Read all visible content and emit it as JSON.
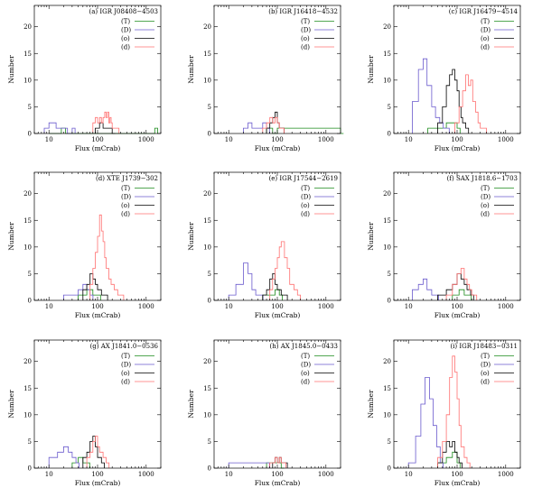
{
  "colors": {
    "T": "#1a8a1a",
    "D": "#6a5acd",
    "o": "#000000",
    "d": "#ff7070"
  },
  "chart_data": {
    "type": "histogram",
    "xscale": "log",
    "xlabel": "Flux (mCrab)",
    "ylabel": "Number",
    "x_ticks": [
      "10",
      "100",
      "1000"
    ],
    "y_ticks": [
      "0",
      "5",
      "10",
      "15",
      "20"
    ],
    "ylim": [
      0,
      24
    ],
    "legend": [
      "(T)",
      "(D)",
      "(o)",
      "(d)"
    ],
    "panels": [
      {
        "title": "(a) IGR J08408−4503",
        "xlim": [
          5,
          2000
        ],
        "series": [
          {
            "key": "T",
            "x": [
              10,
              14,
              18,
              22,
              1500
            ],
            "y": [
              0,
              0,
              1,
              0,
              1
            ]
          },
          {
            "key": "D",
            "x": [
              8,
              10,
              14,
              18,
              24,
              30
            ],
            "y": [
              1,
              2,
              1,
              1,
              0,
              1
            ]
          },
          {
            "key": "o",
            "x": [
              90,
              110,
              130,
              160,
              200
            ],
            "y": [
              1,
              2,
              1,
              1,
              0
            ]
          },
          {
            "key": "d",
            "x": [
              80,
              90,
              100,
              110,
              120,
              130,
              140,
              150,
              160,
              170,
              180,
              190,
              200,
              220,
              240
            ],
            "y": [
              2,
              3,
              2,
              3,
              2,
              3,
              4,
              3,
              4,
              2,
              3,
              2,
              1,
              1,
              1
            ]
          }
        ]
      },
      {
        "title": "(b) IGR J16418−4532",
        "xlim": [
          5,
          2000
        ],
        "series": [
          {
            "key": "T",
            "x": [
              60,
              80,
              100,
              2000
            ],
            "y": [
              1,
              0,
              1,
              0
            ]
          },
          {
            "key": "D",
            "x": [
              20,
              25,
              30,
              40,
              50,
              60
            ],
            "y": [
              1,
              2,
              1,
              1,
              2,
              1
            ]
          },
          {
            "key": "o",
            "x": [
              60,
              70,
              80,
              90,
              100,
              110,
              120
            ],
            "y": [
              1,
              2,
              3,
              4,
              2,
              1,
              1
            ]
          },
          {
            "key": "d",
            "x": [
              50,
              60,
              70,
              80,
              90,
              100,
              110,
              120
            ],
            "y": [
              1,
              2,
              3,
              2,
              3,
              2,
              1,
              1
            ]
          }
        ]
      },
      {
        "title": "(c) IGR J16479−4514",
        "xlim": [
          5,
          2000
        ],
        "series": [
          {
            "key": "T",
            "x": [
              25,
              40,
              60,
              80,
              100
            ],
            "y": [
              1,
              1,
              2,
              2,
              1
            ]
          },
          {
            "key": "D",
            "x": [
              12,
              16,
              20,
              24,
              30,
              36,
              44,
              52,
              60
            ],
            "y": [
              6,
              12,
              14,
              9,
              5,
              3,
              2,
              1,
              1
            ]
          },
          {
            "key": "o",
            "x": [
              40,
              50,
              60,
              70,
              80,
              90,
              100,
              110,
              120,
              130,
              150
            ],
            "y": [
              2,
              5,
              9,
              11,
              12,
              10,
              8,
              5,
              3,
              2,
              1
            ]
          },
          {
            "key": "d",
            "x": [
              90,
              110,
              130,
              150,
              170,
              190,
              210,
              240,
              270,
              300,
              350
            ],
            "y": [
              2,
              5,
              8,
              11,
              9,
              10,
              6,
              4,
              2,
              1,
              1
            ]
          }
        ]
      },
      {
        "title": "(d) XTE J1739−302",
        "xlim": [
          5,
          2000
        ],
        "series": [
          {
            "key": "T",
            "x": [
              40,
              60,
              80,
              100
            ],
            "y": [
              1,
              2,
              1,
              1
            ]
          },
          {
            "key": "D",
            "x": [
              20,
              30,
              40,
              50,
              60,
              70
            ],
            "y": [
              1,
              1,
              2,
              3,
              2,
              1
            ]
          },
          {
            "key": "o",
            "x": [
              50,
              60,
              70,
              80,
              90,
              100,
              120,
              140
            ],
            "y": [
              2,
              3,
              5,
              4,
              3,
              2,
              1,
              1
            ]
          },
          {
            "key": "d",
            "x": [
              70,
              80,
              90,
              100,
              110,
              120,
              130,
              140,
              150,
              170,
              190,
              220,
              260,
              300
            ],
            "y": [
              3,
              6,
              9,
              12,
              16,
              13,
              11,
              8,
              6,
              4,
              3,
              2,
              1,
              1
            ]
          }
        ]
      },
      {
        "title": "(e) IGR J17544−2619",
        "xlim": [
          5,
          2000
        ],
        "series": [
          {
            "key": "T",
            "x": [
              50,
              70,
              90,
              110
            ],
            "y": [
              1,
              1,
              2,
              1
            ]
          },
          {
            "key": "D",
            "x": [
              10,
              14,
              20,
              25,
              30,
              36,
              44
            ],
            "y": [
              1,
              3,
              7,
              5,
              2,
              1,
              1
            ]
          },
          {
            "key": "o",
            "x": [
              50,
              60,
              70,
              80,
              90,
              100,
              120,
              140
            ],
            "y": [
              1,
              2,
              4,
              5,
              3,
              2,
              1,
              1
            ]
          },
          {
            "key": "d",
            "x": [
              70,
              80,
              90,
              100,
              110,
              120,
              140,
              160,
              180,
              220,
              260
            ],
            "y": [
              2,
              4,
              6,
              8,
              10,
              11,
              8,
              6,
              3,
              2,
              1
            ]
          }
        ]
      },
      {
        "title": "(f) SAX J1818.6−1703",
        "xlim": [
          5,
          2000
        ],
        "series": [
          {
            "key": "T",
            "x": [
              80,
              110,
              140,
              170
            ],
            "y": [
              1,
              2,
              1,
              1
            ]
          },
          {
            "key": "D",
            "x": [
              12,
              16,
              20,
              24,
              30,
              36
            ],
            "y": [
              2,
              3,
              4,
              2,
              1,
              1
            ]
          },
          {
            "key": "o",
            "x": [
              40,
              60,
              80,
              100,
              120,
              140,
              160,
              190
            ],
            "y": [
              1,
              2,
              3,
              5,
              4,
              3,
              2,
              1
            ]
          },
          {
            "key": "d",
            "x": [
              60,
              80,
              100,
              120,
              140,
              160,
              180,
              200,
              220
            ],
            "y": [
              1,
              3,
              5,
              6,
              4,
              3,
              2,
              1,
              1
            ]
          }
        ]
      },
      {
        "title": "(g) AX J1841.0−0536",
        "xlim": [
          5,
          2000
        ],
        "series": [
          {
            "key": "T",
            "x": [
              30,
              40,
              50,
              60
            ],
            "y": [
              1,
              2,
              1,
              1
            ]
          },
          {
            "key": "D",
            "x": [
              10,
              15,
              20,
              25,
              30,
              36
            ],
            "y": [
              2,
              3,
              4,
              3,
              2,
              1
            ]
          },
          {
            "key": "o",
            "x": [
              50,
              60,
              70,
              80,
              90,
              100,
              120
            ],
            "y": [
              2,
              3,
              5,
              6,
              4,
              2,
              1
            ]
          },
          {
            "key": "d",
            "x": [
              60,
              70,
              80,
              90,
              100,
              110,
              130,
              150
            ],
            "y": [
              2,
              3,
              5,
              6,
              4,
              3,
              2,
              1
            ]
          }
        ]
      },
      {
        "title": "(h) AX J1845.0−0433",
        "xlim": [
          5,
          2000
        ],
        "series": [
          {
            "key": "T",
            "x": [
              60,
              80,
              100,
              120
            ],
            "y": [
              1,
              1,
              1,
              0
            ]
          },
          {
            "key": "D",
            "x": [
              10,
              20,
              40,
              60
            ],
            "y": [
              1,
              1,
              1,
              1
            ]
          },
          {
            "key": "o",
            "x": [
              80,
              90,
              100,
              110,
              120,
              140
            ],
            "y": [
              1,
              2,
              1,
              2,
              1,
              1
            ]
          },
          {
            "key": "d",
            "x": [
              70,
              80,
              90,
              100,
              110,
              120,
              130
            ],
            "y": [
              1,
              1,
              2,
              1,
              2,
              1,
              1
            ]
          }
        ]
      },
      {
        "title": "(i) IGR J18483−0311",
        "xlim": [
          5,
          2000
        ],
        "series": [
          {
            "key": "T",
            "x": [
              40,
              60,
              80,
              100
            ],
            "y": [
              1,
              2,
              3,
              1
            ]
          },
          {
            "key": "D",
            "x": [
              10,
              14,
              18,
              22,
              27,
              32,
              38,
              45
            ],
            "y": [
              1,
              6,
              12,
              17,
              13,
              8,
              4,
              1
            ]
          },
          {
            "key": "o",
            "x": [
              40,
              50,
              60,
              70,
              80,
              90,
              100,
              110
            ],
            "y": [
              1,
              3,
              5,
              4,
              5,
              3,
              2,
              1
            ]
          },
          {
            "key": "d",
            "x": [
              40,
              50,
              60,
              70,
              80,
              90,
              100,
              110,
              120,
              140,
              160
            ],
            "y": [
              2,
              5,
              10,
              17,
              21,
              18,
              13,
              8,
              4,
              2,
              1
            ]
          }
        ]
      }
    ]
  }
}
